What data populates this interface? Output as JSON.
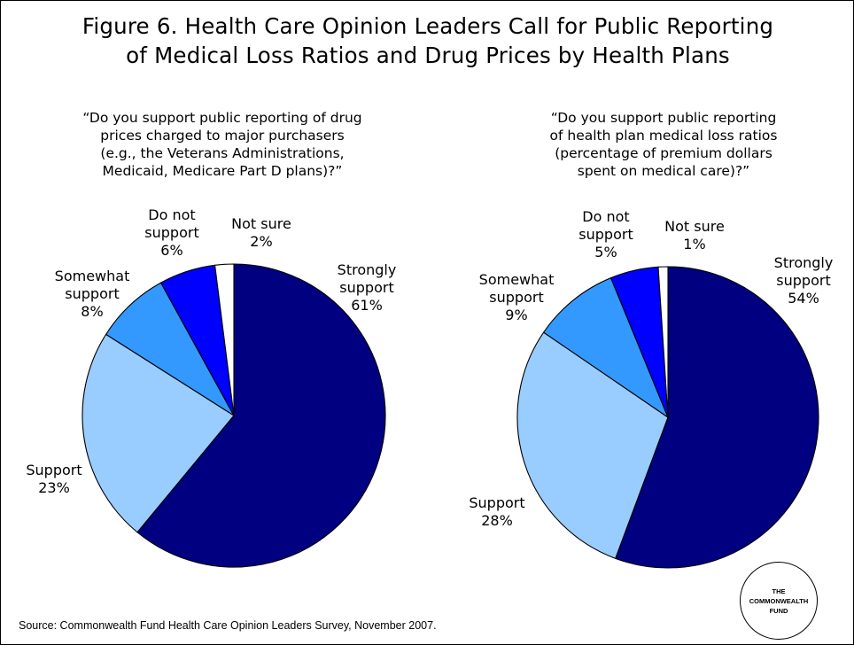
{
  "title_line1": "Figure 6. Health Care Opinion Leaders Call for Public Reporting",
  "title_line2": "of Medical Loss Ratios and Drug Prices by Health Plans",
  "source": "Source: Commonwealth Fund Health Care Opinion Leaders Survey, November 2007.",
  "logo": {
    "line1": "THE",
    "line2": "COMMONWEALTH",
    "line3": "FUND"
  },
  "slice_colors": [
    "#000080",
    "#99ccff",
    "#3399ff",
    "#0000ff",
    "#ffffff"
  ],
  "chart_data": [
    {
      "type": "pie",
      "question_lines": [
        "“Do you support public reporting of drug",
        "prices charged to major purchasers",
        "(e.g., the Veterans Administrations,",
        "Medicaid, Medicare Part D plans)?”"
      ],
      "slices": [
        {
          "label_lines": [
            "Strongly",
            "support",
            "61%"
          ],
          "value": 61
        },
        {
          "label_lines": [
            "Support",
            "23%"
          ],
          "value": 23
        },
        {
          "label_lines": [
            "Somewhat",
            "support",
            "8%"
          ],
          "value": 8
        },
        {
          "label_lines": [
            "Do not",
            "support",
            "6%"
          ],
          "value": 6
        },
        {
          "label_lines": [
            "Not sure",
            "2%"
          ],
          "value": 2
        }
      ]
    },
    {
      "type": "pie",
      "question_lines": [
        "“Do you support public reporting",
        "of health plan medical loss ratios",
        "(percentage of premium dollars",
        "spent on medical care)?”"
      ],
      "slices": [
        {
          "label_lines": [
            "Strongly",
            "support",
            "54%"
          ],
          "value": 54
        },
        {
          "label_lines": [
            "Support",
            "28%"
          ],
          "value": 28
        },
        {
          "label_lines": [
            "Somewhat",
            "support",
            "9%"
          ],
          "value": 9
        },
        {
          "label_lines": [
            "Do not",
            "support",
            "5%"
          ],
          "value": 5
        },
        {
          "label_lines": [
            "Not sure",
            "1%"
          ],
          "value": 1
        }
      ]
    }
  ]
}
